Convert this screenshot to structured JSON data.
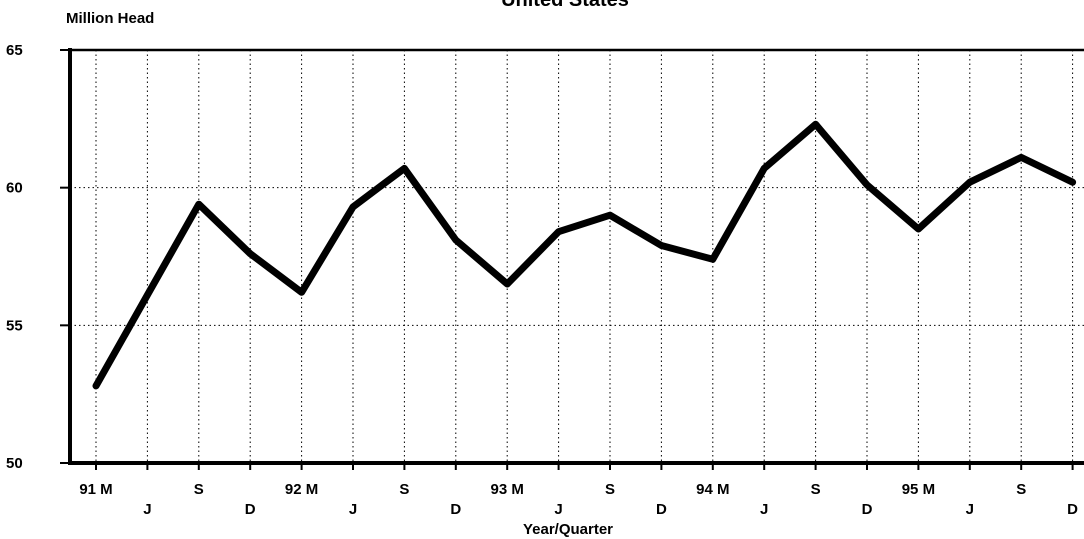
{
  "chart_data": {
    "type": "line",
    "title": "United States",
    "ylabel": "Million Head",
    "xlabel": "Year/Quarter",
    "ylim": [
      50,
      65
    ],
    "yticks": [
      50,
      55,
      60,
      65
    ],
    "grid": true,
    "x_tick_labels": [
      "91 M",
      "J",
      "S",
      "D",
      "92 M",
      "J",
      "S",
      "D",
      "93 M",
      "J",
      "S",
      "D",
      "94 M",
      "J",
      "S",
      "D",
      "95 M",
      "J",
      "S",
      "D"
    ],
    "series": [
      {
        "color": "#000000",
        "x": [
          "91 M",
          "91 J",
          "91 S",
          "91 D",
          "92 M",
          "92 J",
          "92 S",
          "92 D",
          "93 M",
          "93 J",
          "93 S",
          "93 D",
          "94 M",
          "94 J",
          "94 S",
          "94 D",
          "95 M",
          "95 J",
          "95 S",
          "95 D"
        ],
        "values": [
          52.8,
          56.1,
          59.4,
          57.6,
          56.2,
          59.3,
          60.7,
          58.1,
          56.5,
          58.4,
          59.0,
          57.9,
          57.4,
          60.7,
          62.3,
          60.1,
          58.5,
          60.2,
          61.1,
          60.2
        ]
      }
    ]
  }
}
